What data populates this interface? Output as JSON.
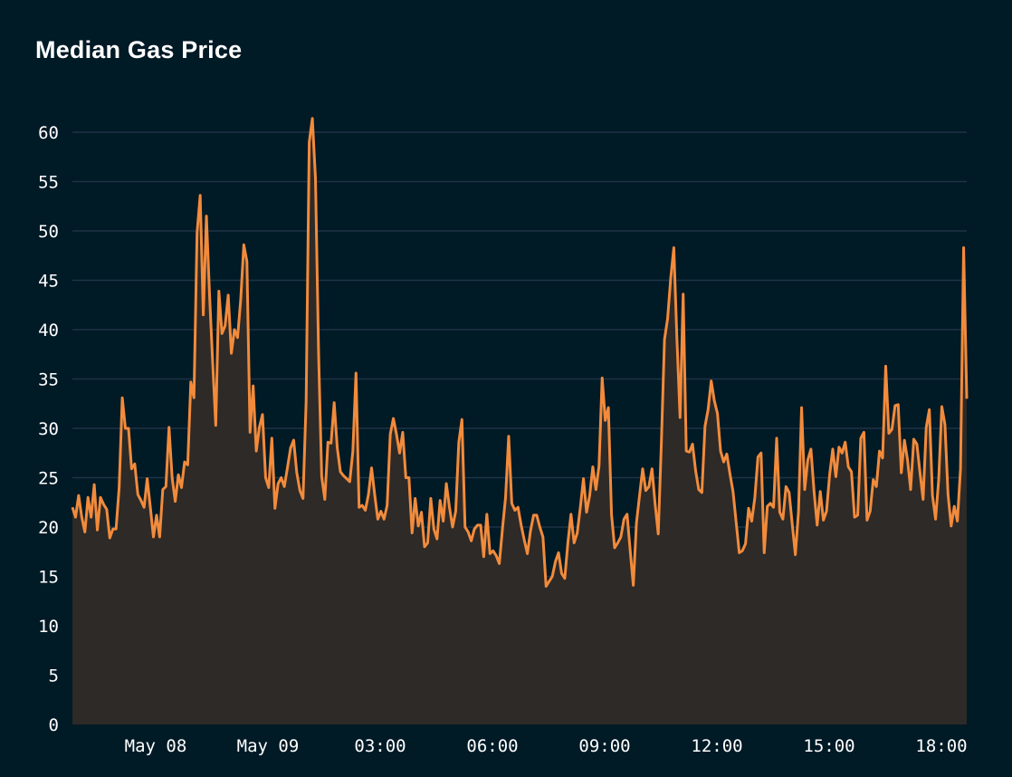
{
  "chart_data": {
    "type": "area",
    "title": "Median Gas Price",
    "xlabel": "",
    "ylabel": "",
    "ylim": [
      0,
      62
    ],
    "y_ticks": [
      0,
      5,
      10,
      15,
      20,
      25,
      30,
      35,
      40,
      45,
      50,
      55,
      60
    ],
    "x_ticks": [
      "May 08",
      "May 09",
      "03:00",
      "06:00",
      "09:00",
      "12:00",
      "15:00",
      "18:00"
    ],
    "grid": "horizontal",
    "colors": {
      "background": "#001a26",
      "line": "#f28b3c",
      "fill": "#2d2a27",
      "grid": "#1f3345"
    },
    "values": [
      22.0,
      21.0,
      23.2,
      21.0,
      19.5,
      23.0,
      21.0,
      24.3,
      19.7,
      23.0,
      22.3,
      21.8,
      18.9,
      19.8,
      19.8,
      24.0,
      33.1,
      30.0,
      30.0,
      25.9,
      26.4,
      23.3,
      22.7,
      22.0,
      24.9,
      22.0,
      19.0,
      21.2,
      19.0,
      23.8,
      24.1,
      30.1,
      25.0,
      22.6,
      25.3,
      24.0,
      26.6,
      26.3,
      34.7,
      33.1,
      49.8,
      53.6,
      41.5,
      51.5,
      43.6,
      36.7,
      30.3,
      43.9,
      39.6,
      40.4,
      43.5,
      37.6,
      40.0,
      39.2,
      43.0,
      48.6,
      46.9,
      29.6,
      34.3,
      27.7,
      30.1,
      31.4,
      25.0,
      24.0,
      29.0,
      21.9,
      24.4,
      25.0,
      24.1,
      26.0,
      28.0,
      28.8,
      25.5,
      23.7,
      22.9,
      32.7,
      59.0,
      61.4,
      55.3,
      37.6,
      25.1,
      22.8,
      28.6,
      28.5,
      32.6,
      28.0,
      25.6,
      25.2,
      24.9,
      24.6,
      27.7,
      35.6,
      22.0,
      22.2,
      21.7,
      23.3,
      26.0,
      23.3,
      20.8,
      21.6,
      20.8,
      22.2,
      29.4,
      31.0,
      29.4,
      27.5,
      29.6,
      25.0,
      25.0,
      19.4,
      22.9,
      20.1,
      21.5,
      18.0,
      18.4,
      22.9,
      19.8,
      18.8,
      22.7,
      20.6,
      24.4,
      22.0,
      20.0,
      21.6,
      28.6,
      30.9,
      20.0,
      19.5,
      18.6,
      19.8,
      20.2,
      20.2,
      17.0,
      21.3,
      17.3,
      17.6,
      17.1,
      16.3,
      19.8,
      23.0,
      29.2,
      22.4,
      21.7,
      22.0,
      20.2,
      18.7,
      17.3,
      19.6,
      21.2,
      21.2,
      20.0,
      19.0,
      14.0,
      14.5,
      15.0,
      16.5,
      17.4,
      15.3,
      14.8,
      18.4,
      21.3,
      18.4,
      19.4,
      22.0,
      24.9,
      21.5,
      23.2,
      26.1,
      23.8,
      26.2,
      35.1,
      30.8,
      32.1,
      21.3,
      17.9,
      18.4,
      19.0,
      20.8,
      21.3,
      17.6,
      14.1,
      20.4,
      23.2,
      25.9,
      23.7,
      24.1,
      25.9,
      22.3,
      19.3,
      28.5,
      39.0,
      41.1,
      45.2,
      48.3,
      39.0,
      31.1,
      43.6,
      27.7,
      27.6,
      28.4,
      25.7,
      23.8,
      23.5,
      30.2,
      31.9,
      34.8,
      32.8,
      31.5,
      27.7,
      26.6,
      27.4,
      25.4,
      23.6,
      20.5,
      17.4,
      17.6,
      18.3,
      21.9,
      20.6,
      23.0,
      27.1,
      27.5,
      17.4,
      22.1,
      22.4,
      22.0,
      29.0,
      21.5,
      20.8,
      24.1,
      23.5,
      20.3,
      17.2,
      21.5,
      32.1,
      23.8,
      26.8,
      27.9,
      23.6,
      20.2,
      23.6,
      20.7,
      21.6,
      25.3,
      27.9,
      25.1,
      28.1,
      27.5,
      28.6,
      26.1,
      25.6,
      21.0,
      21.2,
      29.0,
      29.6,
      20.7,
      21.6,
      24.8,
      24.1,
      27.7,
      27.0,
      36.3,
      29.5,
      29.9,
      32.3,
      32.4,
      25.5,
      28.8,
      26.8,
      23.8,
      28.9,
      28.4,
      25.5,
      22.8,
      30.1,
      31.9,
      23.2,
      20.8,
      24.8,
      32.2,
      30.4,
      23.3,
      20.1,
      22.1,
      20.6,
      25.9,
      48.3,
      33.0
    ]
  }
}
